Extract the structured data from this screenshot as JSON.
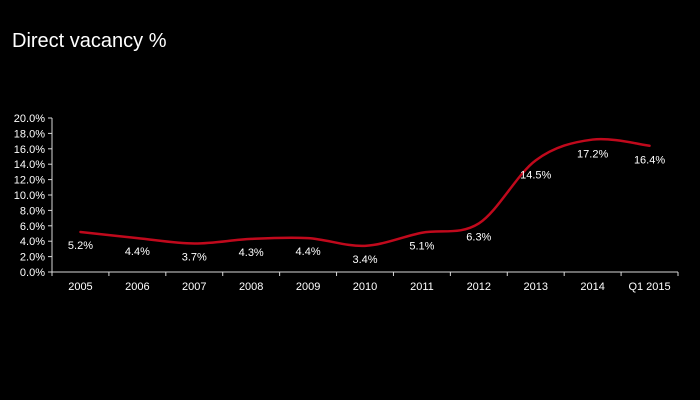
{
  "chart_data": {
    "type": "line",
    "title": "Direct vacancy %",
    "xlabel": "",
    "ylabel": "",
    "categories": [
      "2005",
      "2006",
      "2007",
      "2008",
      "2009",
      "2010",
      "2011",
      "2012",
      "2013",
      "2014",
      "Q1 2015"
    ],
    "series": [
      {
        "values": [
          5.2,
          4.4,
          3.7,
          4.3,
          4.4,
          3.4,
          5.1,
          6.3,
          14.5,
          17.2,
          16.4
        ],
        "data_labels": [
          "5.2%",
          "4.4%",
          "3.7%",
          "4.3%",
          "4.4%",
          "3.4%",
          "5.1%",
          "6.3%",
          "14.5%",
          "17.2%",
          "16.4%"
        ],
        "color": "#c0091c"
      }
    ],
    "ylim": [
      0,
      20
    ],
    "yticks": [
      0,
      2,
      4,
      6,
      8,
      10,
      12,
      14,
      16,
      18,
      20
    ],
    "ytick_labels": [
      "0.0%",
      "2.0%",
      "4.0%",
      "6.0%",
      "8.0%",
      "10.0%",
      "12.0%",
      "14.0%",
      "16.0%",
      "18.0%",
      "20.0%"
    ],
    "grid": false,
    "legend": "none",
    "line_smoothed": true
  },
  "colors": {
    "background": "#000000",
    "text": "#ffffff",
    "axis": "#d9d9d9",
    "line": "#c0091c"
  }
}
